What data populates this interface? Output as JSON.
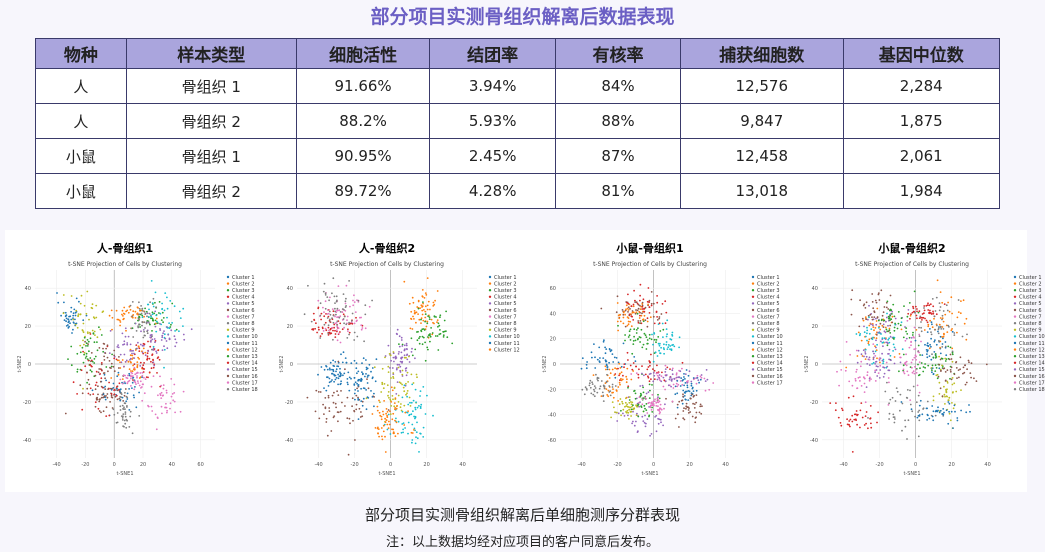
{
  "title": "部分项目实测骨组织解离后数据表现",
  "table": {
    "header": [
      "物种",
      "样本类型",
      "细胞活性",
      "结团率",
      "有核率",
      "捕获细胞数",
      "基因中位数"
    ],
    "rows": [
      [
        "人",
        "骨组织 1",
        "91.66%",
        "3.94%",
        "84%",
        "12,576",
        "2,284"
      ],
      [
        "人",
        "骨组织 2",
        "88.2%",
        "5.93%",
        "88%",
        "9,847",
        "1,875"
      ],
      [
        "小鼠",
        "骨组织 1",
        "90.95%",
        "2.45%",
        "87%",
        "12,458",
        "2,061"
      ],
      [
        "小鼠",
        "骨组织 2",
        "89.72%",
        "4.28%",
        "81%",
        "13,018",
        "1,984"
      ]
    ]
  },
  "plots": [
    {
      "title": "人-骨组织1",
      "subtitle": "t-SNE Projection of Cells by Clustering",
      "x_label": "t-SNE1",
      "y_label": "t-SNE2",
      "xticks": [
        -40,
        -20,
        0,
        20,
        40,
        60
      ],
      "yticks": [
        -40,
        -20,
        0,
        20,
        40
      ],
      "legend": [
        "Cluster 1",
        "Cluster 2",
        "Cluster 3",
        "Cluster 4",
        "Cluster 5",
        "Cluster 6",
        "Cluster 7",
        "Cluster 8",
        "Cluster 9",
        "Cluster 10",
        "Cluster 11",
        "Cluster 12",
        "Cluster 13",
        "Cluster 14",
        "Cluster 15",
        "Cluster 16",
        "Cluster 17",
        "Cluster 18"
      ]
    },
    {
      "title": "人-骨组织2",
      "subtitle": "t-SNE Projection of Cells by Clustering",
      "x_label": "t-SNE1",
      "y_label": "t-SNE2",
      "xticks": [
        -40,
        -20,
        0,
        20,
        40
      ],
      "yticks": [
        -40,
        -20,
        0,
        20,
        40
      ],
      "legend": [
        "Cluster 1",
        "Cluster 2",
        "Cluster 3",
        "Cluster 4",
        "Cluster 5",
        "Cluster 6",
        "Cluster 7",
        "Cluster 8",
        "Cluster 9",
        "Cluster 10",
        "Cluster 11",
        "Cluster 12"
      ]
    },
    {
      "title": "小鼠-骨组织1",
      "subtitle": "t-SNE Projection of Cells by Clustering",
      "x_label": "t-SNE1",
      "y_label": "t-SNE2",
      "xticks": [
        -40,
        -20,
        0,
        20,
        40
      ],
      "yticks": [
        -60,
        -40,
        -20,
        0,
        20,
        40,
        60
      ],
      "legend": [
        "Cluster 1",
        "Cluster 2",
        "Cluster 3",
        "Cluster 4",
        "Cluster 5",
        "Cluster 6",
        "Cluster 7",
        "Cluster 8",
        "Cluster 9",
        "Cluster 10",
        "Cluster 11",
        "Cluster 12",
        "Cluster 13",
        "Cluster 14",
        "Cluster 15",
        "Cluster 16",
        "Cluster 17"
      ]
    },
    {
      "title": "小鼠-骨组织2",
      "subtitle": "t-SNE Projection of Cells by Clustering",
      "x_label": "t-SNE1",
      "y_label": "t-SNE2",
      "xticks": [
        -40,
        -20,
        0,
        20,
        40
      ],
      "yticks": [
        -40,
        -20,
        0,
        20,
        40
      ],
      "legend": [
        "Cluster 1",
        "Cluster 2",
        "Cluster 3",
        "Cluster 4",
        "Cluster 5",
        "Cluster 6",
        "Cluster 7",
        "Cluster 8",
        "Cluster 9",
        "Cluster 10",
        "Cluster 11",
        "Cluster 12",
        "Cluster 13",
        "Cluster 14",
        "Cluster 15",
        "Cluster 16",
        "Cluster 17",
        "Cluster 18"
      ]
    }
  ],
  "cluster_colors": [
    "#1f77b4",
    "#ff7f0e",
    "#2ca02c",
    "#d62728",
    "#9467bd",
    "#8c564b",
    "#e377c2",
    "#7f7f7f",
    "#bcbd22",
    "#17becf"
  ],
  "caption": "部分项目实测骨组织解离后单细胞测序分群表现",
  "note": "注：以上数据均经对应项目的客户同意后发布。"
}
